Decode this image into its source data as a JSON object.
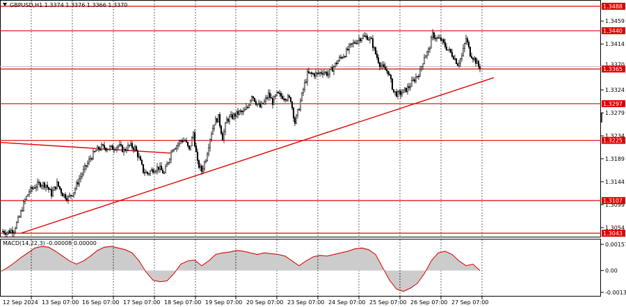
{
  "header": {
    "title": "GBPUSD,H1  1.3374 1.3376 1.3366 1.3370"
  },
  "macd": {
    "title": "MACD(14,22,3) -0.00008 0.00000"
  },
  "chart_data": {
    "type": "candlestick",
    "symbol": "GBPUSD",
    "timeframe": "H1",
    "price_ticks": [
      "1.3459",
      "1.3414",
      "1.3324",
      "1.3279",
      "1.3234",
      "1.3189",
      "1.3144",
      "1.3099",
      "1.3054"
    ],
    "current_price": "1.3370",
    "levels": [
      {
        "value": 1.3488,
        "label": "1.3488"
      },
      {
        "value": 1.344,
        "label": "1.3440"
      },
      {
        "value": 1.3365,
        "label": "1.3365"
      },
      {
        "value": 1.3297,
        "label": "1.3297"
      },
      {
        "value": 1.3225,
        "label": "1.3225"
      },
      {
        "value": 1.3107,
        "label": "1.3107"
      },
      {
        "value": 1.3043,
        "label": "1.3043"
      }
    ],
    "x_labels": [
      "12 Sep 2024",
      "13 Sep 07:00",
      "16 Sep 07:00",
      "17 Sep 07:00",
      "18 Sep 07:00",
      "19 Sep 07:00",
      "20 Sep 07:00",
      "23 Sep 07:00",
      "24 Sep 07:00",
      "25 Sep 07:00",
      "26 Sep 07:00",
      "27 Sep 07:00"
    ],
    "path": [
      [
        0,
        1.3048
      ],
      [
        10,
        1.3045
      ],
      [
        20,
        1.305
      ],
      [
        28,
        1.3075
      ],
      [
        35,
        1.3105
      ],
      [
        42,
        1.3125
      ],
      [
        50,
        1.3135
      ],
      [
        58,
        1.314
      ],
      [
        66,
        1.3138
      ],
      [
        74,
        1.312
      ],
      [
        82,
        1.314
      ],
      [
        90,
        1.312
      ],
      [
        98,
        1.3112
      ],
      [
        106,
        1.3125
      ],
      [
        114,
        1.315
      ],
      [
        122,
        1.317
      ],
      [
        130,
        1.319
      ],
      [
        138,
        1.3205
      ],
      [
        146,
        1.3212
      ],
      [
        154,
        1.321
      ],
      [
        162,
        1.321
      ],
      [
        170,
        1.3215
      ],
      [
        178,
        1.3205
      ],
      [
        186,
        1.3215
      ],
      [
        194,
        1.321
      ],
      [
        200,
        1.319
      ],
      [
        206,
        1.3165
      ],
      [
        212,
        1.316
      ],
      [
        220,
        1.3168
      ],
      [
        228,
        1.3172
      ],
      [
        236,
        1.316
      ],
      [
        242,
        1.3185
      ],
      [
        248,
        1.321
      ],
      [
        254,
        1.3215
      ],
      [
        260,
        1.3225
      ],
      [
        266,
        1.3225
      ],
      [
        272,
        1.3205
      ],
      [
        278,
        1.324
      ],
      [
        284,
        1.318
      ],
      [
        290,
        1.3165
      ],
      [
        296,
        1.319
      ],
      [
        302,
        1.323
      ],
      [
        308,
        1.326
      ],
      [
        314,
        1.327
      ],
      [
        320,
        1.323
      ],
      [
        326,
        1.3265
      ],
      [
        332,
        1.327
      ],
      [
        338,
        1.3275
      ],
      [
        344,
        1.328
      ],
      [
        350,
        1.328
      ],
      [
        356,
        1.329
      ],
      [
        362,
        1.3315
      ],
      [
        368,
        1.33
      ],
      [
        374,
        1.329
      ],
      [
        380,
        1.33
      ],
      [
        386,
        1.3315
      ],
      [
        392,
        1.33
      ],
      [
        398,
        1.3315
      ],
      [
        404,
        1.3312
      ],
      [
        410,
        1.331
      ],
      [
        418,
        1.3305
      ],
      [
        424,
        1.326
      ],
      [
        430,
        1.329
      ],
      [
        436,
        1.3325
      ],
      [
        442,
        1.3355
      ],
      [
        448,
        1.3355
      ],
      [
        456,
        1.3355
      ],
      [
        464,
        1.336
      ],
      [
        472,
        1.3355
      ],
      [
        480,
        1.337
      ],
      [
        488,
        1.3385
      ],
      [
        496,
        1.3395
      ],
      [
        504,
        1.341
      ],
      [
        512,
        1.342
      ],
      [
        520,
        1.3428
      ],
      [
        528,
        1.3428
      ],
      [
        534,
        1.342
      ],
      [
        540,
        1.3395
      ],
      [
        546,
        1.3375
      ],
      [
        552,
        1.3365
      ],
      [
        558,
        1.336
      ],
      [
        562,
        1.334
      ],
      [
        566,
        1.332
      ],
      [
        572,
        1.3315
      ],
      [
        580,
        1.332
      ],
      [
        588,
        1.333
      ],
      [
        596,
        1.3345
      ],
      [
        604,
        1.336
      ],
      [
        610,
        1.339
      ],
      [
        616,
        1.34
      ],
      [
        622,
        1.3432
      ],
      [
        628,
        1.3425
      ],
      [
        634,
        1.3422
      ],
      [
        640,
        1.341
      ],
      [
        646,
        1.34
      ],
      [
        652,
        1.339
      ],
      [
        658,
        1.3375
      ],
      [
        664,
        1.339
      ],
      [
        670,
        1.3425
      ],
      [
        676,
        1.3395
      ],
      [
        682,
        1.3385
      ],
      [
        688,
        1.337
      ]
    ],
    "trendlines": [
      {
        "from": [
          30,
          1.3043
        ],
        "to": [
          710,
          1.3348
        ]
      },
      {
        "from": [
          0,
          1.3221
        ],
        "to": [
          245,
          1.32
        ]
      }
    ],
    "macd_ticks": [
      "0.00157",
      "0.00",
      "-0.00131"
    ],
    "macd_hist": [
      [
        0,
        -0.0001
      ],
      [
        15,
        0.0003
      ],
      [
        30,
        0.0008
      ],
      [
        40,
        0.0011
      ],
      [
        50,
        0.0014
      ],
      [
        60,
        0.0015
      ],
      [
        70,
        0.00145
      ],
      [
        80,
        0.0012
      ],
      [
        90,
        0.0009
      ],
      [
        100,
        0.0006
      ],
      [
        110,
        0.0004
      ],
      [
        120,
        0.0006
      ],
      [
        130,
        0.0009
      ],
      [
        140,
        0.00125
      ],
      [
        150,
        0.00145
      ],
      [
        160,
        0.0015
      ],
      [
        170,
        0.0014
      ],
      [
        180,
        0.0013
      ],
      [
        190,
        0.0011
      ],
      [
        200,
        0.0006
      ],
      [
        210,
        -0.0001
      ],
      [
        220,
        -0.0006
      ],
      [
        230,
        -0.0007
      ],
      [
        240,
        -0.00065
      ],
      [
        250,
        -0.0002
      ],
      [
        260,
        0.0004
      ],
      [
        270,
        0.0006
      ],
      [
        280,
        0.00065
      ],
      [
        290,
        0.0003
      ],
      [
        300,
        0.0006
      ],
      [
        310,
        0.001
      ],
      [
        320,
        0.0011
      ],
      [
        330,
        0.00115
      ],
      [
        340,
        0.00125
      ],
      [
        350,
        0.0012
      ],
      [
        360,
        0.0011
      ],
      [
        370,
        0.001
      ],
      [
        380,
        0.0011
      ],
      [
        390,
        0.00105
      ],
      [
        400,
        0.001
      ],
      [
        410,
        0.0009
      ],
      [
        420,
        0.0006
      ],
      [
        430,
        0.0003
      ],
      [
        440,
        0.0006
      ],
      [
        450,
        0.00085
      ],
      [
        460,
        0.00095
      ],
      [
        470,
        0.0009
      ],
      [
        480,
        0.001
      ],
      [
        490,
        0.0011
      ],
      [
        500,
        0.0012
      ],
      [
        510,
        0.00135
      ],
      [
        520,
        0.0014
      ],
      [
        530,
        0.0013
      ],
      [
        540,
        0.001
      ],
      [
        550,
        0.0002
      ],
      [
        560,
        -0.0006
      ],
      [
        570,
        -0.00115
      ],
      [
        580,
        -0.0013
      ],
      [
        590,
        -0.0011
      ],
      [
        600,
        -0.0008
      ],
      [
        610,
        -0.0002
      ],
      [
        620,
        0.0006
      ],
      [
        630,
        0.0011
      ],
      [
        640,
        0.0012
      ],
      [
        650,
        0.001
      ],
      [
        660,
        0.0006
      ],
      [
        670,
        0.0003
      ],
      [
        680,
        0.0004
      ],
      [
        690,
        0.0
      ]
    ]
  }
}
